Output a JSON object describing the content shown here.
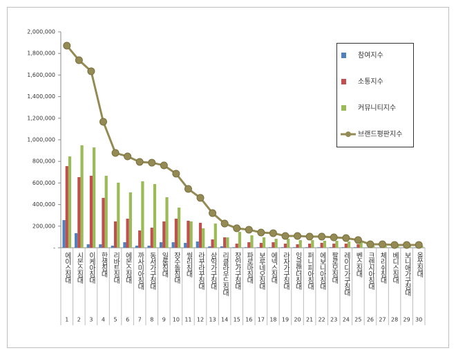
{
  "chart_data": {
    "type": "bar",
    "categories": [
      "에이스침대",
      "시몬스침대",
      "이케아침대",
      "한샘침대",
      "리바트침대",
      "에몬스침대",
      "까사미아침대",
      "동서가구침대",
      "일룸침대",
      "장수돌침대",
      "씰리침대",
      "라꾸라꾸침대",
      "삼익가구침대",
      "리클라우드침대",
      "장인가구침대",
      "파로마침대",
      "보루네오침대",
      "에넥스침대",
      "라자가구침대",
      "잉글랜더침대",
      "퍼니피아침대",
      "에보니아침대",
      "팔로모침대",
      "레이디가구침대",
      "벤스침대",
      "크렌시아침대",
      "체리쉬침대",
      "베디스침대",
      "보니애가구침대",
      "올쏘침대"
    ],
    "ranks": [
      1,
      2,
      3,
      4,
      5,
      6,
      7,
      8,
      9,
      10,
      11,
      12,
      13,
      14,
      15,
      16,
      17,
      18,
      19,
      20,
      21,
      22,
      23,
      24,
      25,
      26,
      27,
      28,
      29,
      30
    ],
    "series": [
      {
        "name": "참여지수",
        "color": "#4f81bd",
        "values": [
          256000,
          135000,
          32000,
          32000,
          19000,
          51000,
          19000,
          19000,
          51000,
          51000,
          45000,
          58000,
          13000,
          13000,
          5000,
          5000,
          5000,
          5000,
          5000,
          5000,
          5000,
          5000,
          5000,
          5000,
          5000,
          3000,
          3000,
          3000,
          3000,
          3000
        ]
      },
      {
        "name": "소통지수",
        "color": "#c0504d",
        "values": [
          756000,
          654000,
          667000,
          462000,
          244000,
          269000,
          160000,
          186000,
          244000,
          269000,
          250000,
          231000,
          77000,
          96000,
          38000,
          51000,
          45000,
          51000,
          38000,
          32000,
          38000,
          45000,
          38000,
          38000,
          32000,
          13000,
          13000,
          13000,
          13000,
          13000
        ]
      },
      {
        "name": "커뮤니티지수",
        "color": "#9bbb59",
        "values": [
          846000,
          949000,
          929000,
          667000,
          603000,
          513000,
          615000,
          590000,
          468000,
          372000,
          244000,
          180000,
          224000,
          96000,
          147000,
          115000,
          96000,
          83000,
          83000,
          71000,
          71000,
          64000,
          64000,
          58000,
          51000,
          19000,
          19000,
          19000,
          19000,
          19000
        ]
      },
      {
        "name": "브랜드평판지수",
        "type": "line",
        "color": "#948a54",
        "values": [
          1872000,
          1737000,
          1635000,
          1167000,
          878000,
          846000,
          795000,
          788000,
          763000,
          686000,
          545000,
          462000,
          321000,
          224000,
          180000,
          167000,
          141000,
          135000,
          109000,
          109000,
          103000,
          103000,
          96000,
          90000,
          71000,
          32000,
          32000,
          26000,
          26000,
          26000
        ]
      }
    ],
    "ylim": [
      0,
      2000000
    ],
    "yticks": [
      {
        "value": 0,
        "label": "-"
      },
      {
        "value": 200000,
        "label": "200,000"
      },
      {
        "value": 400000,
        "label": "400,000"
      },
      {
        "value": 600000,
        "label": "600,000"
      },
      {
        "value": 800000,
        "label": "800,000"
      },
      {
        "value": 1000000,
        "label": "1,000,000"
      },
      {
        "value": 1200000,
        "label": "1,200,000"
      },
      {
        "value": 1400000,
        "label": "1,400,000"
      },
      {
        "value": 1600000,
        "label": "1,600,000"
      },
      {
        "value": 1800000,
        "label": "1,800,000"
      },
      {
        "value": 2000000,
        "label": "2,000,000"
      }
    ],
    "grid": false,
    "legend": "top-right"
  }
}
